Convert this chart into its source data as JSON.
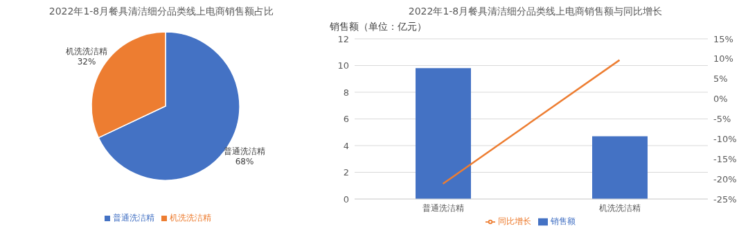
{
  "chart_data": [
    {
      "type": "pie",
      "title": "2022年1-8月餐具清洁细分品类线上电商销售额占比",
      "categories": [
        "普通洗洁精",
        "机洗洗洁精"
      ],
      "values": [
        68,
        32
      ],
      "colors": [
        "#4472c4",
        "#ed7d31"
      ],
      "value_labels": [
        "68%",
        "32%"
      ],
      "legend": "bottom"
    },
    {
      "type": "bar",
      "title": "2022年1-8月餐具清洁细分品类线上电商销售额与同比增长",
      "ylabel": "销售额（单位：亿元）",
      "categories": [
        "普通洗洁精",
        "机洗洗洁精"
      ],
      "series": [
        {
          "name": "销售额",
          "type": "bar",
          "color": "#4472c4",
          "values": [
            9.8,
            4.7
          ]
        },
        {
          "name": "同比增长",
          "type": "line",
          "color": "#ed7d31",
          "axis": "y2",
          "values": [
            -21.2,
            9.7
          ]
        }
      ],
      "ylim": [
        0,
        12
      ],
      "yticks": [
        0,
        2,
        4,
        6,
        8,
        10,
        12
      ],
      "y2lim": [
        -25,
        15
      ],
      "y2ticks": [
        {
          "value": -25,
          "label": "-25%"
        },
        {
          "value": -20,
          "label": "-20%"
        },
        {
          "value": -15,
          "label": "-15%"
        },
        {
          "value": -10,
          "label": "-10%"
        },
        {
          "value": -5,
          "label": "-5%"
        },
        {
          "value": 0,
          "label": "0%"
        },
        {
          "value": 5,
          "label": "5%"
        },
        {
          "value": 10,
          "label": "10%"
        },
        {
          "value": 15,
          "label": "15%"
        }
      ],
      "grid": "y",
      "legend": "bottom",
      "marker": "none",
      "line_style": "solid"
    }
  ]
}
